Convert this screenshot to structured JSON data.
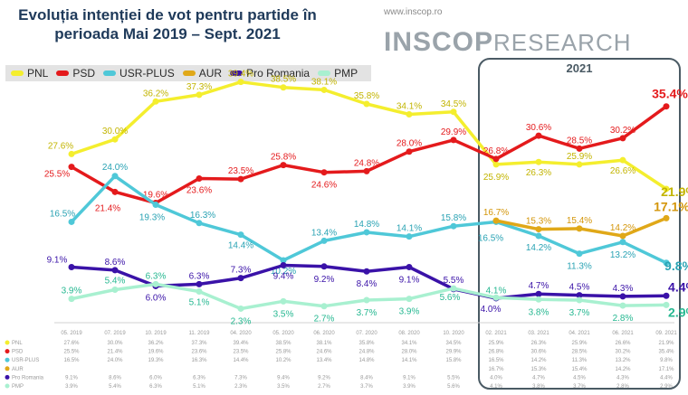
{
  "header": {
    "title_line1": "Evoluția intenției de vot pentru partide în",
    "title_line2": "perioada Mai 2019 – Sept. 2021",
    "brand_url": "www.inscop.ro",
    "brand_bold": "INSCOP",
    "brand_light": "RESEARCH",
    "highlight_label": "2021"
  },
  "colors": {
    "PNL": "#f4ee2e",
    "PSD": "#e41a1c",
    "USR-PLUS": "#4fc8d8",
    "AUR": "#e0a818",
    "Pro Romania": "#3a12a8",
    "PMP": "#a8f0d0",
    "label_PNL": "#c2b400",
    "label_PSD": "#e41a1c",
    "label_USR": "#2aa3b4",
    "label_AUR": "#d4960a",
    "label_PRO": "#3a12a8",
    "label_PMP": "#26b891"
  },
  "chart_data": {
    "type": "line",
    "title": "Evoluția intenției de vot pentru partide în perioada Mai 2019 – Sept. 2021",
    "categories": [
      "05. 2019",
      "07. 2019",
      "10. 2019",
      "11. 2019",
      "04. 2020",
      "05. 2020",
      "06. 2020",
      "07. 2020",
      "08. 2020",
      "10. 2020",
      "02. 2021",
      "03. 2021",
      "04. 2021",
      "06. 2021",
      "09. 2021"
    ],
    "ylim": [
      0,
      42
    ],
    "series": [
      {
        "name": "PNL",
        "values": [
          27.6,
          30.0,
          36.2,
          37.3,
          39.4,
          38.5,
          38.1,
          35.8,
          34.1,
          34.5,
          25.9,
          26.3,
          25.9,
          26.6,
          21.9
        ]
      },
      {
        "name": "PSD",
        "values": [
          25.5,
          21.4,
          19.6,
          23.6,
          23.5,
          25.8,
          24.6,
          24.8,
          28.0,
          29.9,
          26.8,
          30.6,
          28.5,
          30.2,
          35.4
        ]
      },
      {
        "name": "USR-PLUS",
        "values": [
          16.5,
          24.0,
          19.3,
          16.3,
          14.4,
          10.2,
          13.4,
          14.8,
          14.1,
          15.8,
          16.5,
          14.2,
          11.3,
          13.2,
          9.8
        ]
      },
      {
        "name": "AUR",
        "values": [
          null,
          null,
          null,
          null,
          null,
          null,
          null,
          null,
          null,
          null,
          16.7,
          15.3,
          15.4,
          14.2,
          17.1
        ]
      },
      {
        "name": "Pro Romania",
        "values": [
          9.1,
          8.6,
          6.0,
          6.3,
          7.3,
          9.4,
          9.2,
          8.4,
          9.1,
          5.5,
          4.0,
          4.7,
          4.5,
          4.3,
          4.4
        ]
      },
      {
        "name": "PMP",
        "values": [
          3.9,
          5.4,
          6.3,
          5.1,
          2.3,
          3.5,
          2.7,
          3.7,
          3.9,
          5.6,
          4.1,
          3.8,
          3.7,
          2.8,
          2.9
        ]
      }
    ],
    "table_rows": [
      {
        "name": "PNL",
        "values": [
          "27.6%",
          "30.0%",
          "36.2%",
          "37.3%",
          "39.4%",
          "38.5%",
          "38.1%",
          "35.8%",
          "34.1%",
          "34.5%",
          "25.9%",
          "26.3%",
          "25.9%",
          "26.6%",
          "21.9%"
        ]
      },
      {
        "name": "PSD",
        "values": [
          "25.5%",
          "21.4%",
          "19.6%",
          "23.6%",
          "23.5%",
          "25.8%",
          "24.6%",
          "24.8%",
          "28.0%",
          "29.9%",
          "26.8%",
          "30.6%",
          "28.5%",
          "30.2%",
          "35.4%"
        ]
      },
      {
        "name": "USR-PLUS",
        "values": [
          "16.5%",
          "24.0%",
          "19.3%",
          "16.3%",
          "14.4%",
          "10.2%",
          "13.4%",
          "14.8%",
          "14.1%",
          "15.8%",
          "16.5%",
          "14.2%",
          "11.3%",
          "13.2%",
          "9.8%"
        ]
      },
      {
        "name": "AUR",
        "values": [
          "",
          "",
          "",
          "",
          "",
          "",
          "",
          "",
          "",
          "",
          "16.7%",
          "15.3%",
          "15.4%",
          "14.2%",
          "17.1%"
        ]
      },
      {
        "name": "Pro Romania",
        "values": [
          "9.1%",
          "8.6%",
          "6.0%",
          "6.3%",
          "7.3%",
          "9.4%",
          "9.2%",
          "8.4%",
          "9.1%",
          "5.5%",
          "4.0%",
          "4.7%",
          "4.5%",
          "4.3%",
          "4.4%"
        ]
      },
      {
        "name": "PMP",
        "values": [
          "3.9%",
          "5.4%",
          "6.3%",
          "5.1%",
          "2.3%",
          "3.5%",
          "2.7%",
          "3.7%",
          "3.9%",
          "5.6%",
          "4.1%",
          "3.8%",
          "3.7%",
          "2.8%",
          "2.9%"
        ]
      }
    ]
  }
}
